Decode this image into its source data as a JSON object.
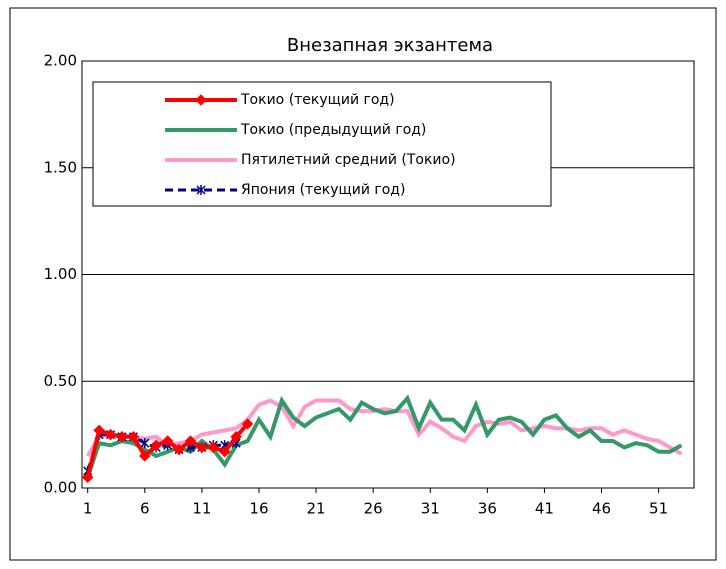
{
  "chart_data": {
    "type": "line",
    "title": "Внезапная экзантема",
    "x": [
      1,
      2,
      3,
      4,
      5,
      6,
      7,
      8,
      9,
      10,
      11,
      12,
      13,
      14,
      15,
      16,
      17,
      18,
      19,
      20,
      21,
      22,
      23,
      24,
      25,
      26,
      27,
      28,
      29,
      30,
      31,
      32,
      33,
      34,
      35,
      36,
      37,
      38,
      39,
      40,
      41,
      42,
      43,
      44,
      45,
      46,
      47,
      48,
      49,
      50,
      51,
      52,
      53
    ],
    "xlim": [
      0.5,
      54.1
    ],
    "xticks": [
      1,
      6,
      11,
      16,
      21,
      26,
      31,
      36,
      41,
      46,
      51
    ],
    "ylim": [
      0,
      2
    ],
    "yticks": [
      {
        "value": 0,
        "label": "0.00"
      },
      {
        "value": 0.5,
        "label": "0.50"
      },
      {
        "value": 1,
        "label": "1.00"
      },
      {
        "value": 1.5,
        "label": "1.50"
      },
      {
        "value": 2,
        "label": "2.00"
      }
    ],
    "grid": true,
    "series": [
      {
        "name": "Пятилетний средний (Токио)",
        "color": "#ff99cc",
        "values": [
          0.15,
          0.24,
          0.25,
          0.25,
          0.24,
          0.23,
          0.24,
          0.2,
          0.21,
          0.22,
          0.25,
          0.26,
          0.27,
          0.28,
          0.32,
          0.39,
          0.41,
          0.38,
          0.29,
          0.38,
          0.41,
          0.41,
          0.41,
          0.37,
          0.36,
          0.36,
          0.37,
          0.36,
          0.36,
          0.25,
          0.31,
          0.28,
          0.24,
          0.22,
          0.29,
          0.31,
          0.3,
          0.31,
          0.27,
          0.28,
          0.29,
          0.28,
          0.28,
          0.27,
          0.28,
          0.28,
          0.25,
          0.27,
          0.25,
          0.23,
          0.22,
          0.19,
          0.16
        ]
      },
      {
        "name": "Токио (предыдущий год)",
        "color": "#339966",
        "values": [
          0.05,
          0.21,
          0.2,
          0.22,
          0.21,
          0.18,
          0.15,
          0.17,
          0.19,
          0.17,
          0.22,
          0.18,
          0.11,
          0.2,
          0.22,
          0.32,
          0.24,
          0.41,
          0.33,
          0.29,
          0.33,
          0.35,
          0.37,
          0.32,
          0.4,
          0.37,
          0.35,
          0.36,
          0.42,
          0.28,
          0.4,
          0.32,
          0.32,
          0.27,
          0.39,
          0.25,
          0.32,
          0.33,
          0.31,
          0.25,
          0.32,
          0.34,
          0.28,
          0.24,
          0.27,
          0.22,
          0.22,
          0.19,
          0.21,
          0.2,
          0.17,
          0.17,
          0.2
        ]
      },
      {
        "name": "Япония (текущий год)",
        "color": "#000080",
        "dash": true,
        "marker": "star",
        "values": [
          0.08,
          0.25,
          0.25,
          0.24,
          0.24,
          0.21,
          0.19,
          0.2,
          0.18,
          0.19,
          0.19,
          0.2,
          0.2,
          0.21,
          null,
          null,
          null,
          null,
          null,
          null,
          null,
          null,
          null,
          null,
          null,
          null,
          null,
          null,
          null,
          null,
          null,
          null,
          null,
          null,
          null,
          null,
          null,
          null,
          null,
          null,
          null,
          null,
          null,
          null,
          null,
          null,
          null,
          null,
          null,
          null,
          null,
          null,
          null
        ]
      },
      {
        "name": "Токио (текущий год)",
        "color": "#ff0000",
        "marker": "diamond",
        "values": [
          0.05,
          0.27,
          0.25,
          0.24,
          0.24,
          0.15,
          0.2,
          0.22,
          0.18,
          0.22,
          0.19,
          0.19,
          0.17,
          0.24,
          0.3,
          null,
          null,
          null,
          null,
          null,
          null,
          null,
          null,
          null,
          null,
          null,
          null,
          null,
          null,
          null,
          null,
          null,
          null,
          null,
          null,
          null,
          null,
          null,
          null,
          null,
          null,
          null,
          null,
          null,
          null,
          null,
          null,
          null,
          null,
          null,
          null,
          null,
          null
        ]
      }
    ],
    "legend_order": [
      3,
      1,
      0,
      2
    ]
  }
}
